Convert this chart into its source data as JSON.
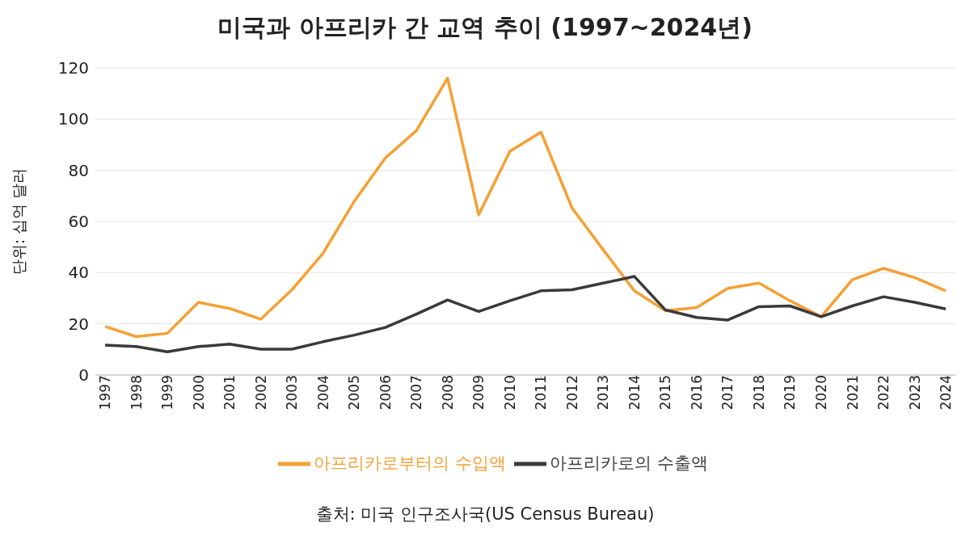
{
  "chart_data": {
    "type": "line",
    "title": "미국과 아프리카 간 교역 추이 (1997~2024년)",
    "ylabel": "단위: 십억 달러",
    "annotations": [
      "출처: 미국 인구조사국(US Census Bureau)"
    ],
    "categories": [
      "1997",
      "1998",
      "1999",
      "2000",
      "2001",
      "2002",
      "2003",
      "2004",
      "2005",
      "2006",
      "2007",
      "2008",
      "2009",
      "2010",
      "2011",
      "2012",
      "2013",
      "2014",
      "2015",
      "2016",
      "2017",
      "2018",
      "2019",
      "2020",
      "2021",
      "2022",
      "2023",
      "2024"
    ],
    "series": [
      {
        "name": "아프리카로부터의 수입액",
        "color": "#f5a033",
        "values": [
          19,
          15,
          16.3,
          28.4,
          26,
          21.8,
          33.3,
          47.6,
          67.8,
          84.8,
          95.5,
          116,
          62.6,
          87.4,
          94.9,
          65.2,
          48.9,
          32.9,
          25.1,
          26.4,
          33.9,
          35.9,
          29,
          22.8,
          37.2,
          41.7,
          38.1,
          32.9
        ]
      },
      {
        "name": "아프리카로의 수출액",
        "color": "#3a3a3a",
        "values": [
          11.7,
          11.1,
          9.1,
          11.1,
          12.1,
          10.1,
          10.1,
          13,
          15.6,
          18.6,
          23.8,
          29.3,
          24.8,
          29,
          32.9,
          33.3,
          35.9,
          38.5,
          25.4,
          22.5,
          21.5,
          26.7,
          27,
          22.8,
          27,
          30.6,
          28.4,
          25.8
        ]
      }
    ],
    "ylim": [
      0,
      120
    ],
    "yticks": [
      0,
      20,
      40,
      60,
      80,
      100,
      120
    ],
    "grid": "y",
    "legend": "bottom",
    "marker": "none",
    "line_style": "solid"
  }
}
